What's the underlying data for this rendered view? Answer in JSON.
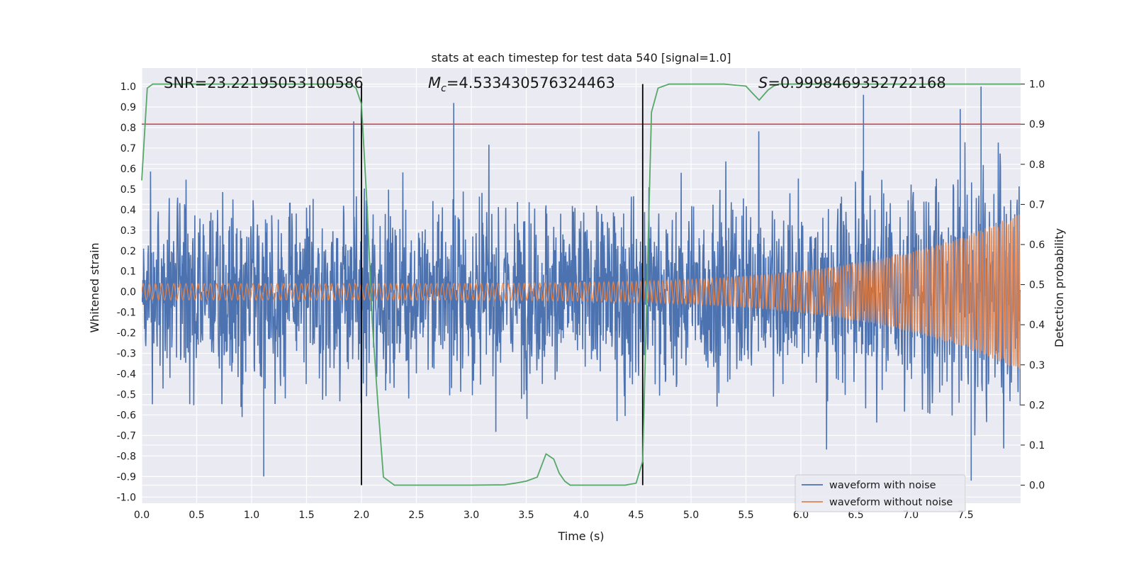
{
  "chart_data": {
    "type": "line",
    "title": "stats at each timestep for test data 540 [signal=1.0]",
    "xlabel": "Time (s)",
    "ylabel": "Whitened strain",
    "y2label": "Detection probability",
    "xlim": [
      0.0,
      8.0
    ],
    "ylim": [
      -1.03,
      1.09
    ],
    "y2lim": [
      -0.045,
      1.04
    ],
    "grid": true,
    "x_ticks": [
      "0.0",
      "0.5",
      "1.0",
      "1.5",
      "2.0",
      "2.5",
      "3.0",
      "3.5",
      "4.0",
      "4.5",
      "5.0",
      "5.5",
      "6.0",
      "6.5",
      "7.0",
      "7.5"
    ],
    "y_ticks": [
      "1.0",
      "0.9",
      "0.8",
      "0.7",
      "0.6",
      "0.5",
      "0.4",
      "0.3",
      "0.2",
      "0.1",
      "0.0",
      "-0.1",
      "-0.2",
      "-0.3",
      "-0.4",
      "-0.5",
      "-0.6",
      "-0.7",
      "-0.8",
      "-0.9",
      "-1.0"
    ],
    "y2_ticks": [
      "1.0",
      "0.9",
      "0.8",
      "0.7",
      "0.6",
      "0.5",
      "0.4",
      "0.3",
      "0.2",
      "0.1",
      "0.0"
    ],
    "annotations": {
      "snr": "SNR=23.22195053100586",
      "mc_symbol": "M",
      "mc_sub": "c",
      "mc_value": "=4.533430576324463",
      "s_symbol": "S",
      "s_value": "=0.9998469352722168"
    },
    "threshold": {
      "y2": 0.9,
      "color": "#c44e52"
    },
    "vlines": [
      2.0,
      4.56
    ],
    "legend": {
      "placement": "bottom-right",
      "entries": [
        "waveform with noise",
        "waveform without noise"
      ]
    },
    "series": [
      {
        "name": "waveform with noise",
        "color": "#4c72b0",
        "kind": "noise",
        "envelope_center": 0.0,
        "typical_amplitude": 0.35,
        "peaks": [
          [
            1.93,
            0.83
          ],
          [
            2.84,
            0.92
          ],
          [
            6.57,
            0.96
          ],
          [
            7.45,
            0.89
          ],
          [
            7.64,
            1.0
          ],
          [
            1.11,
            -0.9
          ],
          [
            7.55,
            -0.92
          ]
        ]
      },
      {
        "name": "waveform without noise",
        "color": "#dd8452",
        "kind": "chirp",
        "amplitude_start": 0.04,
        "amplitude_end": 0.4
      },
      {
        "name": "Detection probability",
        "color": "#55a868",
        "axis": "right",
        "x": [
          0.0,
          0.05,
          0.1,
          0.5,
          1.0,
          1.5,
          1.8,
          1.9,
          1.95,
          2.0,
          2.05,
          2.1,
          2.15,
          2.2,
          2.3,
          2.4,
          2.5,
          3.0,
          3.3,
          3.4,
          3.5,
          3.6,
          3.68,
          3.75,
          3.8,
          3.85,
          3.9,
          4.0,
          4.3,
          4.4,
          4.5,
          4.56,
          4.6,
          4.64,
          4.7,
          4.8,
          5.0,
          5.3,
          5.5,
          5.55,
          5.62,
          5.7,
          5.75,
          5.8,
          6.0,
          7.0,
          8.0
        ],
        "y": [
          0.76,
          0.99,
          1.0,
          1.0,
          1.0,
          1.0,
          1.0,
          1.0,
          0.99,
          0.95,
          0.7,
          0.4,
          0.2,
          0.02,
          0.0,
          0.0,
          0.0,
          0.0,
          0.001,
          0.005,
          0.01,
          0.02,
          0.078,
          0.065,
          0.03,
          0.01,
          0.0,
          0.0,
          0.0,
          0.0,
          0.005,
          0.06,
          0.5,
          0.93,
          0.99,
          1.0,
          1.0,
          1.0,
          0.995,
          0.98,
          0.96,
          0.985,
          0.995,
          1.0,
          1.0,
          1.0,
          1.0
        ]
      }
    ]
  }
}
